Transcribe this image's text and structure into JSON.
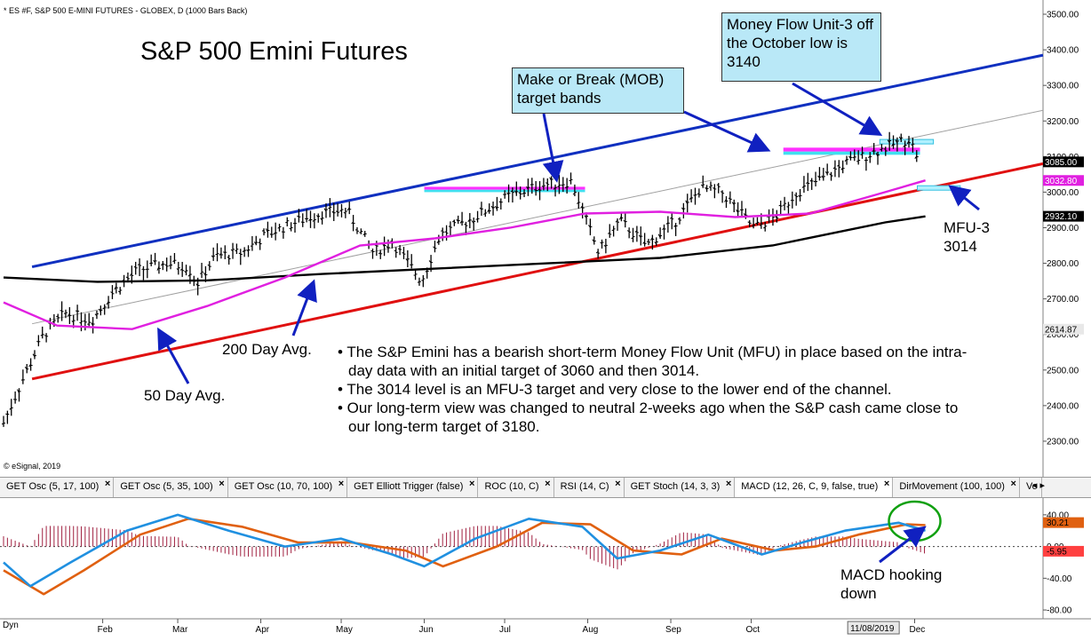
{
  "header": {
    "symbol_line": "* ES #F, S&P 500 E-MINI FUTURES - GLOBEX, D (1000 Bars Back)",
    "copyright": "© eSignal, 2019"
  },
  "annotations": {
    "title": "S&P 500 Emini Futures",
    "mob_label": "Make or Break (MOB) target bands",
    "mfu_box_label": "Money Flow Unit-3 off the October low is 3140",
    "mfu3_label": "MFU-3 3014",
    "ma200_label": "200 Day Avg.",
    "ma50_label": "50 Day Avg.",
    "macd_note": "MACD hooking down",
    "bullets": [
      "• The S&P Emini has a bearish short-term Money Flow Unit (MFU) in place based on the intra-day data with an initial target of 3060 and then 3014.",
      "• The 3014 level is an MFU-3 target and very close to the lower end of the channel.",
      "• Our long-term view was changed to neutral 2-weeks ago when the S&P cash came close to our long-term target of 3180."
    ]
  },
  "tabs": [
    {
      "label": "GET Osc (5, 17, 100)"
    },
    {
      "label": "GET Osc (5, 35, 100)"
    },
    {
      "label": "GET Osc (10, 70, 100)"
    },
    {
      "label": "GET Elliott Trigger (false)"
    },
    {
      "label": "ROC (10, C)"
    },
    {
      "label": "RSI (14, C)"
    },
    {
      "label": "GET Stoch (14, 3, 3)"
    },
    {
      "label": "MACD (12, 26, C, 9, false, true)"
    },
    {
      "label": "DirMovement (100, 100)"
    },
    {
      "label": "Vo"
    }
  ],
  "bottom": {
    "dyn_label": "Dyn",
    "date_readout": "11/08/2019"
  },
  "colors": {
    "price": "#000000",
    "ma50": "#e020e0",
    "ma200": "#000000",
    "upper_channel": "#1030c0",
    "lower_channel": "#e01010",
    "mid_channel": "#a0a0a0",
    "mob_magenta": "#ff30ff",
    "mob_cyan": "#40e0f0",
    "arrow": "#1020c0",
    "macd_line": "#2090e0",
    "signal_line": "#e06010",
    "histogram": "#a02040",
    "circle": "#10a010"
  },
  "chart_data": [
    {
      "type": "line",
      "title": "S&P 500 Emini Futures",
      "x_months": [
        "Feb",
        "Mar",
        "Apr",
        "May",
        "Jun",
        "Jul",
        "Aug",
        "Sep",
        "Oct",
        "Dec"
      ],
      "y_axis_ticks": [
        2300,
        2400,
        2500,
        2600,
        2700,
        2800,
        2900,
        3000,
        3100,
        3200,
        3300,
        3400,
        3500
      ],
      "ylim": [
        2220,
        3540
      ],
      "last_price_labels": [
        3085.0,
        3032.8,
        2932.1,
        2614.87
      ],
      "series": [
        {
          "kind": "price",
          "x": [
            "2018-12-26",
            "2019-01-02",
            "2019-01-10",
            "2019-01-18",
            "2019-01-28",
            "2019-02-05",
            "2019-02-14",
            "2019-02-25",
            "2019-03-05",
            "2019-03-08",
            "2019-03-15",
            "2019-03-25",
            "2019-04-03",
            "2019-04-12",
            "2019-04-23",
            "2019-05-03",
            "2019-05-13",
            "2019-05-20",
            "2019-05-31",
            "2019-06-07",
            "2019-06-20",
            "2019-07-03",
            "2019-07-15",
            "2019-07-26",
            "2019-08-05",
            "2019-08-13",
            "2019-08-23",
            "2019-09-03",
            "2019-09-12",
            "2019-09-20",
            "2019-10-02",
            "2019-10-10",
            "2019-10-18",
            "2019-10-28",
            "2019-11-05",
            "2019-11-15",
            "2019-11-25",
            "2019-11-29",
            "2019-12-03"
          ],
          "values": [
            2351,
            2470,
            2600,
            2660,
            2640,
            2720,
            2780,
            2800,
            2790,
            2740,
            2820,
            2830,
            2880,
            2910,
            2940,
            2950,
            2830,
            2860,
            2750,
            2880,
            2930,
            2990,
            3020,
            3030,
            2830,
            2920,
            2850,
            2920,
            3010,
            3000,
            2900,
            2930,
            3000,
            3040,
            3080,
            3110,
            3140,
            3150,
            3085
          ]
        },
        {
          "kind": "ma50",
          "x": [
            "2018-12-26",
            "2019-01-15",
            "2019-02-12",
            "2019-03-12",
            "2019-04-10",
            "2019-05-08",
            "2019-06-05",
            "2019-07-03",
            "2019-07-31",
            "2019-08-28",
            "2019-09-25",
            "2019-10-23",
            "2019-11-20",
            "2019-12-05"
          ],
          "values": [
            2690,
            2625,
            2615,
            2680,
            2760,
            2850,
            2870,
            2900,
            2940,
            2945,
            2930,
            2940,
            3000,
            3033
          ]
        },
        {
          "kind": "ma200",
          "x": [
            "2018-12-26",
            "2019-01-30",
            "2019-03-12",
            "2019-04-24",
            "2019-06-05",
            "2019-07-17",
            "2019-08-28",
            "2019-10-09",
            "2019-11-20",
            "2019-12-05"
          ],
          "values": [
            2760,
            2748,
            2752,
            2770,
            2785,
            2800,
            2815,
            2850,
            2915,
            2932
          ]
        },
        {
          "kind": "upper_channel",
          "x": [
            "2019-01-01",
            "2019-12-31"
          ],
          "values": [
            2790,
            3385
          ]
        },
        {
          "kind": "lower_channel",
          "x": [
            "2019-01-01",
            "2019-12-31"
          ],
          "values": [
            2475,
            3080
          ]
        },
        {
          "kind": "mid_channel",
          "x": [
            "2019-01-01",
            "2019-12-31"
          ],
          "values": [
            2630,
            3230
          ]
        }
      ],
      "bands": [
        {
          "name": "MOB",
          "x": [
            "2019-06-01",
            "2019-07-31"
          ],
          "values": [
            3000,
            3015
          ]
        },
        {
          "name": "MOB",
          "x": [
            "2019-10-13",
            "2019-12-03"
          ],
          "values": [
            3105,
            3125
          ]
        },
        {
          "name": "MFU-3 3140",
          "x": [
            "2019-11-18",
            "2019-12-08"
          ],
          "values": [
            3138,
            3148
          ]
        },
        {
          "name": "MFU-3 3014",
          "x": [
            "2019-12-02",
            "2019-12-18"
          ],
          "values": [
            3010,
            3018
          ]
        }
      ]
    },
    {
      "type": "line",
      "title": "MACD (12, 26, C, 9, false, true)",
      "y_axis_ticks": [
        40.0,
        0.0,
        -40.0,
        -80.0
      ],
      "ylim": [
        -90,
        60
      ],
      "last_value_labels": [
        30.21,
        -5.95
      ],
      "series": [
        {
          "kind": "macd",
          "x": [
            "2018-12-26",
            "2019-01-05",
            "2019-01-20",
            "2019-02-10",
            "2019-03-01",
            "2019-03-20",
            "2019-04-10",
            "2019-05-01",
            "2019-05-20",
            "2019-06-01",
            "2019-06-20",
            "2019-07-10",
            "2019-07-30",
            "2019-08-12",
            "2019-08-28",
            "2019-09-15",
            "2019-10-05",
            "2019-10-20",
            "2019-11-05",
            "2019-11-25",
            "2019-12-05"
          ],
          "values": [
            -20,
            -50,
            -20,
            20,
            40,
            20,
            0,
            10,
            -10,
            -25,
            10,
            35,
            25,
            -15,
            -5,
            15,
            -10,
            5,
            20,
            30,
            20
          ]
        },
        {
          "kind": "signal",
          "x": [
            "2018-12-26",
            "2019-01-10",
            "2019-01-25",
            "2019-02-15",
            "2019-03-05",
            "2019-03-25",
            "2019-04-15",
            "2019-05-05",
            "2019-05-25",
            "2019-06-08",
            "2019-06-28",
            "2019-07-15",
            "2019-08-02",
            "2019-08-18",
            "2019-09-05",
            "2019-09-20",
            "2019-10-10",
            "2019-10-25",
            "2019-11-10",
            "2019-11-28",
            "2019-12-05"
          ],
          "values": [
            -30,
            -60,
            -30,
            15,
            35,
            25,
            5,
            5,
            -5,
            -25,
            0,
            30,
            28,
            -5,
            -10,
            10,
            -5,
            0,
            15,
            28,
            27
          ]
        }
      ]
    }
  ]
}
